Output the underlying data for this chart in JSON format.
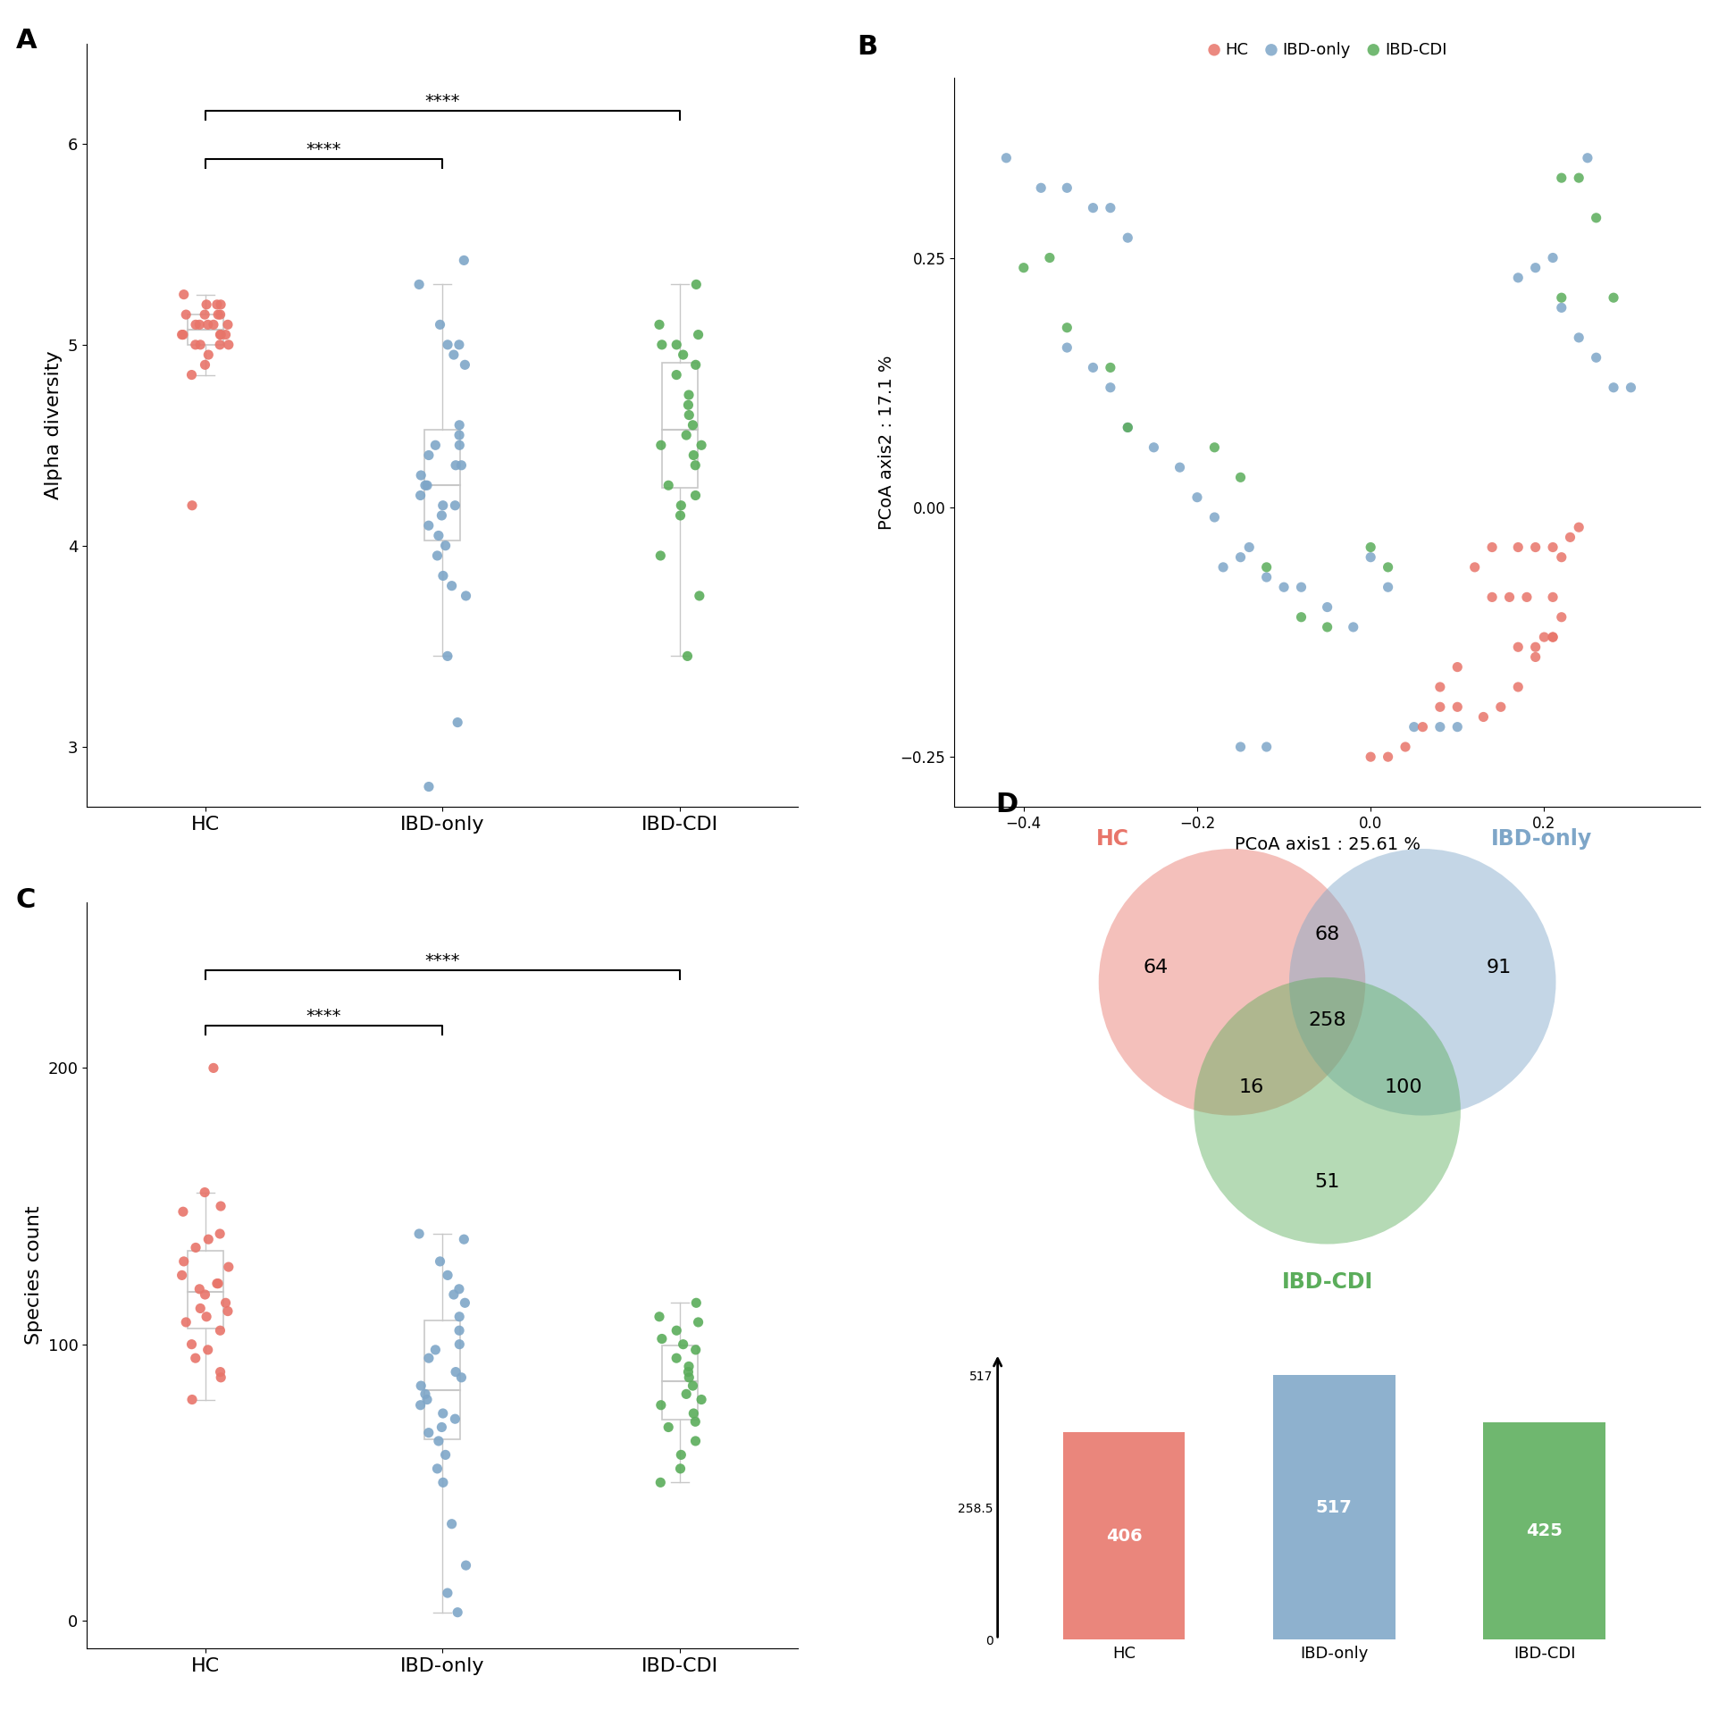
{
  "colors": {
    "HC": "#E8756A",
    "IBD_only": "#7EA6C8",
    "IBD_CDI": "#5BAD5B"
  },
  "panel_A": {
    "ylabel": "Alpha diversity",
    "HC": [
      5.1,
      5.15,
      5.2,
      5.05,
      5.0,
      4.95,
      5.1,
      5.25,
      5.0,
      5.05,
      5.15,
      5.2,
      5.1,
      4.9,
      5.05,
      5.0,
      5.1,
      5.2,
      5.15,
      5.05,
      4.85,
      5.1,
      5.0,
      5.15,
      5.05,
      4.2
    ],
    "IBD_only": [
      5.3,
      5.42,
      5.1,
      5.0,
      5.0,
      4.95,
      4.9,
      4.6,
      4.55,
      4.5,
      4.5,
      4.45,
      4.4,
      4.4,
      4.35,
      4.3,
      4.3,
      4.25,
      4.2,
      4.2,
      4.15,
      4.1,
      4.05,
      4.0,
      3.95,
      3.85,
      3.8,
      3.75,
      3.45,
      3.12,
      2.8
    ],
    "IBD_CDI": [
      5.3,
      5.1,
      5.05,
      5.0,
      5.0,
      4.95,
      4.9,
      4.85,
      4.75,
      4.7,
      4.65,
      4.6,
      4.55,
      4.5,
      4.5,
      4.45,
      4.4,
      4.3,
      4.25,
      4.2,
      4.15,
      3.95,
      3.75,
      3.45
    ],
    "ylim": [
      2.7,
      6.5
    ],
    "yticks": [
      3,
      4,
      5,
      6
    ]
  },
  "panel_B": {
    "xlabel": "PCoA axis1 : 25.61 %",
    "ylabel": "PCoA axis2 : 17.1 %",
    "HC_x": [
      0.14,
      0.17,
      0.19,
      0.21,
      0.23,
      0.24,
      0.14,
      0.16,
      0.18,
      0.21,
      0.22,
      0.21,
      0.2,
      0.19,
      0.17,
      0.08,
      0.1,
      0.13,
      0.15,
      0.17,
      0.19,
      0.21,
      0.22,
      0.0,
      0.02,
      0.04,
      0.06,
      0.08,
      0.1,
      0.12
    ],
    "HC_y": [
      -0.04,
      -0.04,
      -0.04,
      -0.04,
      -0.03,
      -0.02,
      -0.09,
      -0.09,
      -0.09,
      -0.09,
      -0.11,
      -0.13,
      -0.13,
      -0.14,
      -0.14,
      -0.18,
      -0.2,
      -0.21,
      -0.2,
      -0.18,
      -0.15,
      -0.13,
      -0.05,
      -0.25,
      -0.25,
      -0.24,
      -0.22,
      -0.2,
      -0.16,
      -0.06
    ],
    "IBD_only_x": [
      -0.42,
      -0.38,
      -0.35,
      -0.32,
      -0.3,
      -0.28,
      -0.35,
      -0.32,
      -0.3,
      -0.28,
      -0.25,
      -0.22,
      -0.2,
      -0.18,
      -0.15,
      -0.12,
      -0.1,
      -0.08,
      -0.05,
      -0.02,
      0.0,
      0.02,
      0.05,
      0.08,
      0.1,
      0.22,
      0.24,
      0.26,
      0.28,
      0.3,
      0.21,
      0.19,
      0.17,
      0.25,
      -0.15,
      -0.12,
      -0.17,
      -0.14
    ],
    "IBD_only_y": [
      0.35,
      0.32,
      0.32,
      0.3,
      0.3,
      0.27,
      0.16,
      0.14,
      0.12,
      0.08,
      0.06,
      0.04,
      0.01,
      -0.01,
      -0.05,
      -0.07,
      -0.08,
      -0.08,
      -0.1,
      -0.12,
      -0.05,
      -0.08,
      -0.22,
      -0.22,
      -0.22,
      0.2,
      0.17,
      0.15,
      0.12,
      0.12,
      0.25,
      0.24,
      0.23,
      0.35,
      -0.24,
      -0.24,
      -0.06,
      -0.04
    ],
    "IBD_CDI_x": [
      -0.4,
      -0.37,
      -0.35,
      -0.3,
      -0.28,
      -0.18,
      -0.15,
      -0.12,
      -0.08,
      -0.05,
      0.0,
      0.02,
      0.22,
      0.24,
      0.26,
      0.28,
      0.22
    ],
    "IBD_CDI_y": [
      0.24,
      0.25,
      0.18,
      0.14,
      0.08,
      0.06,
      0.03,
      -0.06,
      -0.11,
      -0.12,
      -0.04,
      -0.06,
      0.33,
      0.33,
      0.29,
      0.21,
      0.21
    ],
    "xlim": [
      -0.48,
      0.38
    ],
    "ylim": [
      -0.3,
      0.43
    ],
    "xticks": [
      -0.4,
      -0.2,
      0.0,
      0.2
    ],
    "yticks": [
      -0.25,
      0.0,
      0.25
    ]
  },
  "panel_C": {
    "ylabel": "Species count",
    "HC": [
      200,
      155,
      150,
      148,
      140,
      138,
      135,
      130,
      128,
      125,
      122,
      122,
      120,
      118,
      115,
      113,
      112,
      110,
      108,
      105,
      100,
      98,
      95,
      90,
      88,
      80
    ],
    "IBD_only": [
      140,
      138,
      130,
      125,
      120,
      118,
      115,
      110,
      105,
      100,
      98,
      95,
      90,
      88,
      85,
      82,
      80,
      78,
      75,
      73,
      70,
      68,
      65,
      60,
      55,
      50,
      35,
      20,
      10,
      3
    ],
    "IBD_CDI": [
      115,
      110,
      108,
      105,
      102,
      100,
      98,
      95,
      92,
      90,
      88,
      85,
      82,
      80,
      78,
      75,
      72,
      70,
      65,
      60,
      55,
      50
    ],
    "ylim": [
      -10,
      260
    ],
    "yticks": [
      0,
      100,
      200
    ]
  },
  "panel_D": {
    "venn": {
      "HC_only": 64,
      "IBD_only_only": 91,
      "HC_IBD_only": 68,
      "all_three": 258,
      "HC_IBD_CDI": 16,
      "IBD_only_IBD_CDI": 100,
      "IBD_CDI_only": 51
    },
    "bar": {
      "HC": 406,
      "IBD_only": 517,
      "IBD_CDI": 425
    }
  }
}
